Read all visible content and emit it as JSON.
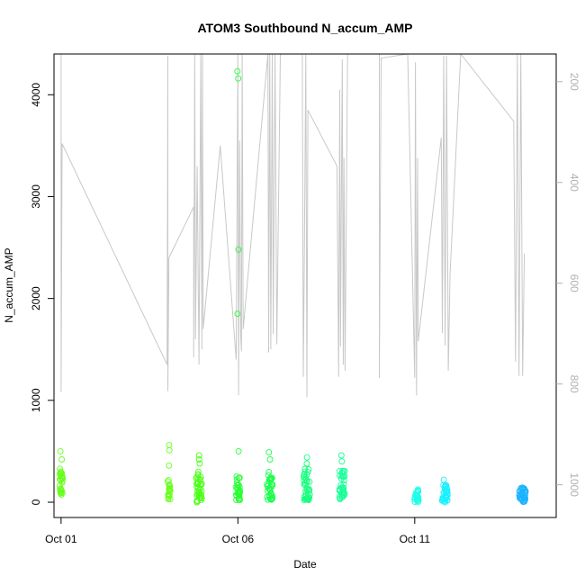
{
  "chart_data": {
    "type": "scatter",
    "title": "ATOM3 Southbound N_accum_AMP",
    "xlabel": "Date",
    "ylabel": "N_accum_AMP",
    "x_tick_labels": [
      "Oct 01",
      "Oct 06",
      "Oct 11"
    ],
    "x_tick_days": [
      1,
      6,
      11
    ],
    "xlim_days": [
      0.8,
      15.0
    ],
    "ylim": [
      -150,
      4400
    ],
    "y_ticks": [
      0,
      1000,
      2000,
      3000,
      4000
    ],
    "y_tick_labels": [
      "0",
      "1000",
      "2000",
      "3000",
      "4000"
    ],
    "right_axis": {
      "ylim": [
        1065,
        145
      ],
      "ticks": [
        200,
        400,
        600,
        800,
        1000
      ],
      "tick_labels": [
        "200",
        "400",
        "600",
        "800",
        "1000"
      ],
      "color": "#b0b0b0"
    },
    "point_clusters": [
      {
        "day": 1.0,
        "spread": 0.05,
        "color": "#66ff1a",
        "ymin": 60,
        "ymax": 330,
        "n": 28,
        "extra": [
          420,
          500
        ]
      },
      {
        "day": 4.05,
        "spread": 0.04,
        "color": "#66ff1a",
        "ymin": 30,
        "ymax": 260,
        "n": 18,
        "extra": [
          360,
          510,
          560
        ]
      },
      {
        "day": 4.9,
        "spread": 0.08,
        "color": "#4dff1a",
        "ymin": 0,
        "ymax": 300,
        "n": 40,
        "extra": [
          380,
          420,
          460
        ]
      },
      {
        "day": 6.0,
        "spread": 0.06,
        "color": "#26ff33",
        "ymin": 20,
        "ymax": 260,
        "n": 30,
        "extra": [
          500,
          1850,
          2480,
          4160,
          4230
        ]
      },
      {
        "day": 6.9,
        "spread": 0.08,
        "color": "#1aff4d",
        "ymin": 20,
        "ymax": 300,
        "n": 38,
        "extra": [
          420,
          490
        ]
      },
      {
        "day": 7.95,
        "spread": 0.09,
        "color": "#1aff80",
        "ymin": 20,
        "ymax": 330,
        "n": 42,
        "extra": [
          380,
          440
        ]
      },
      {
        "day": 8.95,
        "spread": 0.08,
        "color": "#1aff99",
        "ymin": 30,
        "ymax": 320,
        "n": 38,
        "extra": [
          400,
          460
        ]
      },
      {
        "day": 11.05,
        "spread": 0.06,
        "color": "#1affe6",
        "ymin": 0,
        "ymax": 130,
        "n": 26,
        "extra": []
      },
      {
        "day": 11.85,
        "spread": 0.08,
        "color": "#1af0ff",
        "ymin": 0,
        "ymax": 170,
        "n": 36,
        "extra": [
          220
        ]
      },
      {
        "day": 14.05,
        "spread": 0.09,
        "color": "#1ab2ff",
        "ymin": 0,
        "ymax": 150,
        "n": 36,
        "extra": []
      }
    ],
    "grey_line": {
      "color": "#c8c8c8",
      "points": [
        [
          1.0,
          4400
        ],
        [
          1.0,
          1080
        ],
        [
          1.03,
          3520
        ],
        [
          4.0,
          1350
        ],
        [
          4.02,
          4380
        ],
        [
          4.02,
          1090
        ],
        [
          4.05,
          2400
        ],
        [
          4.75,
          2900
        ],
        [
          4.75,
          1420
        ],
        [
          4.78,
          4400
        ],
        [
          4.8,
          1600
        ],
        [
          4.85,
          3300
        ],
        [
          4.9,
          1350
        ],
        [
          4.95,
          4400
        ],
        [
          4.98,
          1500
        ],
        [
          5.0,
          4400
        ],
        [
          5.02,
          1700
        ],
        [
          5.5,
          3500
        ],
        [
          5.95,
          1400
        ],
        [
          6.0,
          4400
        ],
        [
          6.02,
          1050
        ],
        [
          6.05,
          3550
        ],
        [
          6.08,
          1620
        ],
        [
          6.1,
          1480
        ],
        [
          6.12,
          4400
        ],
        [
          6.15,
          1700
        ],
        [
          6.85,
          4400
        ],
        [
          6.87,
          1470
        ],
        [
          6.9,
          4400
        ],
        [
          6.93,
          1500
        ],
        [
          6.97,
          4400
        ],
        [
          7.0,
          1650
        ],
        [
          7.05,
          4400
        ],
        [
          7.1,
          1550
        ],
        [
          7.2,
          4400
        ],
        [
          7.82,
          4400
        ],
        [
          7.85,
          1230
        ],
        [
          7.88,
          2450
        ],
        [
          7.92,
          4400
        ],
        [
          7.95,
          1030
        ],
        [
          7.98,
          3850
        ],
        [
          8.8,
          3300
        ],
        [
          8.85,
          1230
        ],
        [
          8.88,
          4050
        ],
        [
          8.9,
          1530
        ],
        [
          8.95,
          4350
        ],
        [
          8.98,
          1350
        ],
        [
          9.0,
          3380
        ],
        [
          9.03,
          1290
        ],
        [
          9.1,
          4400
        ],
        [
          10.0,
          4400
        ],
        [
          10.0,
          1220
        ],
        [
          10.05,
          4360
        ],
        [
          10.8,
          4400
        ],
        [
          11.0,
          1220
        ],
        [
          11.02,
          4320
        ],
        [
          11.05,
          1050
        ],
        [
          11.08,
          3380
        ],
        [
          11.1,
          1580
        ],
        [
          11.75,
          3580
        ],
        [
          11.78,
          1660
        ],
        [
          11.82,
          4380
        ],
        [
          11.86,
          1540
        ],
        [
          11.9,
          4380
        ],
        [
          11.95,
          1290
        ],
        [
          12.0,
          2250
        ],
        [
          12.3,
          4400
        ],
        [
          13.8,
          3740
        ],
        [
          13.85,
          1380
        ],
        [
          13.9,
          4400
        ],
        [
          13.95,
          1240
        ],
        [
          14.0,
          4400
        ],
        [
          14.05,
          1240
        ],
        [
          14.1,
          2440
        ]
      ]
    }
  }
}
